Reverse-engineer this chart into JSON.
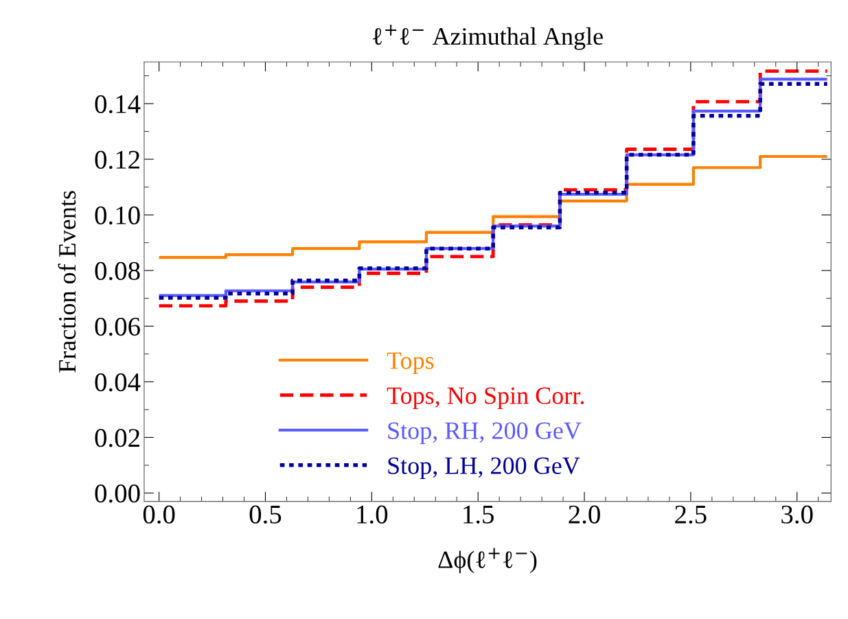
{
  "chart_data": {
    "type": "histogram",
    "title": "ℓ$^{+}$ℓ$^{−}$ Azimuthal Angle",
    "xlabel": "Δϕ(ℓ$^{+}$ℓ$^{−}$)",
    "ylabel": "Fraction of Events",
    "bins": [
      0,
      0.314,
      0.628,
      0.942,
      1.257,
      1.571,
      1.885,
      2.199,
      2.513,
      2.827,
      3.142
    ],
    "series": [
      {
        "name": "Tops",
        "color": "#ff8000",
        "line_style": "solid",
        "values": [
          0.0847,
          0.0857,
          0.0879,
          0.0903,
          0.0937,
          0.0994,
          0.105,
          0.111,
          0.117,
          0.121
        ]
      },
      {
        "name": "Tops, No Spin Corr.",
        "color": "#ff0000",
        "line_style": "dashed",
        "values": [
          0.0673,
          0.069,
          0.074,
          0.079,
          0.085,
          0.0964,
          0.109,
          0.1236,
          0.1407,
          0.1517
        ]
      },
      {
        "name": "Stop, RH, 200 GeV",
        "color": "#5a5aff",
        "line_style": "solid",
        "values": [
          0.071,
          0.0727,
          0.0759,
          0.0805,
          0.0879,
          0.096,
          0.1074,
          0.1216,
          0.1373,
          0.1488
        ]
      },
      {
        "name": "Stop, LH, 200 GeV",
        "color": "#00009a",
        "line_style": "dotted",
        "values": [
          0.0702,
          0.0717,
          0.0764,
          0.0808,
          0.0879,
          0.0955,
          0.108,
          0.1216,
          0.1356,
          0.1471
        ]
      }
    ],
    "xlim": [
      -0.07,
      3.16
    ],
    "ylim": [
      -0.003,
      0.155
    ],
    "xticks": [
      {
        "value": 0,
        "label": "0.0"
      },
      0.5,
      {
        "value": 1,
        "label": "1.0"
      },
      1.5,
      {
        "value": 2,
        "label": "2.0"
      },
      2.5,
      {
        "value": 3,
        "label": "3.0"
      }
    ],
    "yticks": [
      {
        "value": 0,
        "label": "0.00"
      },
      0.02,
      0.04,
      0.06,
      0.08,
      {
        "value": 0.1,
        "label": "0.10"
      },
      0.12,
      0.14
    ],
    "grid": false,
    "legend": "bottom"
  }
}
